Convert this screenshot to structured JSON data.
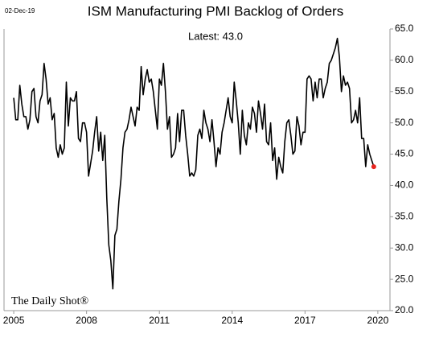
{
  "chart_data": {
    "type": "line",
    "title": "ISM Manufacturing PMI Backlog of Orders",
    "date_label": "02-Dec-19",
    "annotation": "Latest:  43.0",
    "source": "The Daily Shot®",
    "color": "#000000",
    "marker_color": "#e8251f",
    "xlim": [
      2004.6,
      2020.5
    ],
    "xticks": [
      2005,
      2008,
      2011,
      2014,
      2017,
      2020
    ],
    "ylim": [
      20,
      65
    ],
    "yticks": [
      {
        "value": 20,
        "label": "20.0"
      },
      {
        "value": 25,
        "label": "25.0"
      },
      {
        "value": 30,
        "label": "30.0"
      },
      {
        "value": 35,
        "label": "35.0"
      },
      {
        "value": 40,
        "label": "40.0"
      },
      {
        "value": 45,
        "label": "45.0"
      },
      {
        "value": 50,
        "label": "50.0"
      },
      {
        "value": 55,
        "label": "55.0"
      },
      {
        "value": 60,
        "label": "60.0"
      },
      {
        "value": 65,
        "label": "65.0"
      }
    ],
    "x": [
      2005,
      2005.083,
      2005.167,
      2005.25,
      2005.333,
      2005.417,
      2005.5,
      2005.583,
      2005.667,
      2005.75,
      2005.833,
      2005.917,
      2006,
      2006.083,
      2006.167,
      2006.25,
      2006.333,
      2006.417,
      2006.5,
      2006.583,
      2006.667,
      2006.75,
      2006.833,
      2006.917,
      2007,
      2007.083,
      2007.167,
      2007.25,
      2007.333,
      2007.417,
      2007.5,
      2007.583,
      2007.667,
      2007.75,
      2007.833,
      2007.917,
      2008,
      2008.083,
      2008.167,
      2008.25,
      2008.333,
      2008.417,
      2008.5,
      2008.583,
      2008.667,
      2008.75,
      2008.833,
      2008.917,
      2009,
      2009.083,
      2009.167,
      2009.25,
      2009.333,
      2009.417,
      2009.5,
      2009.583,
      2009.667,
      2009.75,
      2009.833,
      2009.917,
      2010,
      2010.083,
      2010.167,
      2010.25,
      2010.333,
      2010.417,
      2010.5,
      2010.583,
      2010.667,
      2010.75,
      2010.833,
      2010.917,
      2011,
      2011.083,
      2011.167,
      2011.25,
      2011.333,
      2011.417,
      2011.5,
      2011.583,
      2011.667,
      2011.75,
      2011.833,
      2011.917,
      2012,
      2012.083,
      2012.167,
      2012.25,
      2012.333,
      2012.417,
      2012.5,
      2012.583,
      2012.667,
      2012.75,
      2012.833,
      2012.917,
      2013,
      2013.083,
      2013.167,
      2013.25,
      2013.333,
      2013.417,
      2013.5,
      2013.583,
      2013.667,
      2013.75,
      2013.833,
      2013.917,
      2014,
      2014.083,
      2014.167,
      2014.25,
      2014.333,
      2014.417,
      2014.5,
      2014.583,
      2014.667,
      2014.75,
      2014.833,
      2014.917,
      2015,
      2015.083,
      2015.167,
      2015.25,
      2015.333,
      2015.417,
      2015.5,
      2015.583,
      2015.667,
      2015.75,
      2015.833,
      2015.917,
      2016,
      2016.083,
      2016.167,
      2016.25,
      2016.333,
      2016.417,
      2016.5,
      2016.583,
      2016.667,
      2016.75,
      2016.833,
      2016.917,
      2017,
      2017.083,
      2017.167,
      2017.25,
      2017.333,
      2017.417,
      2017.5,
      2017.583,
      2017.667,
      2017.75,
      2017.833,
      2017.917,
      2018,
      2018.083,
      2018.167,
      2018.25,
      2018.333,
      2018.417,
      2018.5,
      2018.583,
      2018.667,
      2018.75,
      2018.833,
      2018.917,
      2019,
      2019.083,
      2019.167,
      2019.25,
      2019.333,
      2019.417,
      2019.5,
      2019.583,
      2019.667,
      2019.75,
      2019.833
    ],
    "values": [
      54,
      50.5,
      50.5,
      56,
      53,
      51,
      51,
      49,
      50.5,
      55,
      55.5,
      51,
      50,
      53.5,
      54.5,
      59.5,
      57,
      53,
      54,
      50.5,
      51.5,
      46,
      44.5,
      46.5,
      45,
      46,
      56.5,
      49.5,
      54,
      53.5,
      53.5,
      55,
      47.5,
      47,
      50,
      50,
      48.5,
      41.5,
      43.5,
      45.5,
      48.5,
      51,
      45.5,
      48.5,
      44,
      48,
      38,
      30.5,
      28,
      23.5,
      32,
      33,
      37.5,
      41,
      46,
      48.5,
      49,
      50.5,
      52.5,
      51,
      49.5,
      52.5,
      52,
      59,
      54.5,
      57,
      58.5,
      56.5,
      57,
      55,
      52,
      49,
      57,
      56,
      59.5,
      55,
      49,
      51,
      44.5,
      45,
      46,
      51.5,
      47,
      52,
      52,
      48,
      45,
      41.5,
      42,
      41.5,
      42.5,
      48,
      49,
      47.5,
      52,
      50,
      49,
      47,
      50.5,
      47,
      43,
      46,
      45,
      48.5,
      50,
      52,
      54,
      51,
      50,
      56.5,
      53.5,
      50,
      45,
      52,
      48,
      46.5,
      50,
      49,
      52.5,
      51.5,
      48.5,
      53.5,
      51.5,
      49,
      53,
      47,
      46.5,
      50,
      44,
      46,
      41,
      44.5,
      43,
      42,
      47,
      50,
      50.5,
      48,
      45,
      45.5,
      51,
      49.5,
      46.5,
      48.5,
      48.5,
      57,
      57.5,
      57,
      53.5,
      56.5,
      54,
      57,
      57,
      54,
      55.5,
      56.5,
      59.5,
      60,
      61,
      62,
      63.5,
      60.5,
      55,
      57.5,
      56,
      56.5,
      55.5,
      50,
      50.5,
      52,
      50,
      54,
      47.5,
      47.5,
      43,
      46.5,
      45,
      44,
      43
    ]
  }
}
